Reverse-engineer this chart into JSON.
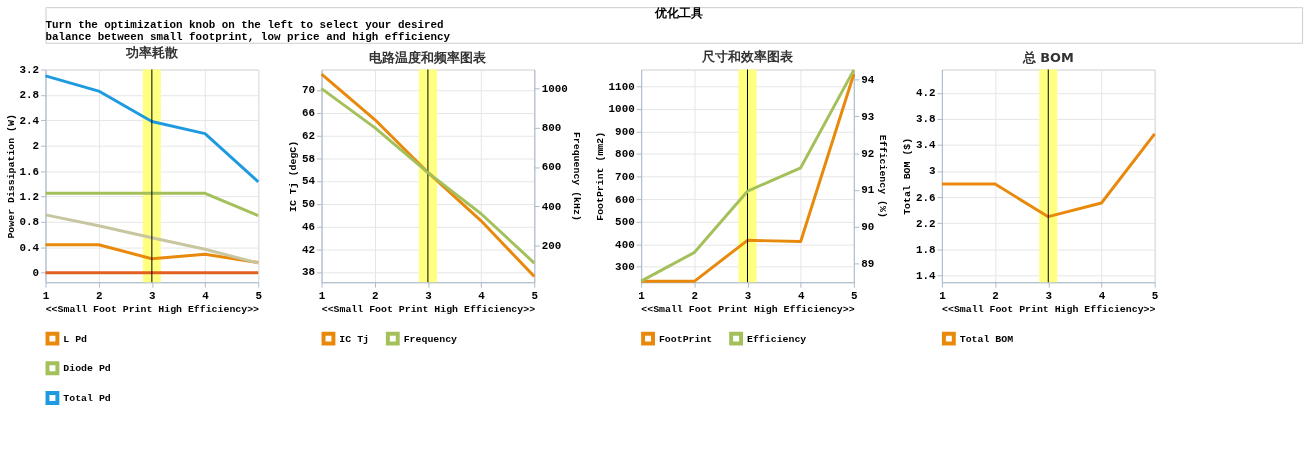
{
  "chart_data": [
    {
      "type": "line",
      "title": "功率耗散",
      "xlabel": "<<Small Foot Print      High Efficiency>>",
      "ylabel": "Power Dissipation (W)",
      "annotations": [
        "优化工具",
        "Turn the optimization knob on the left to select your desired",
        "balance between small footprint, low price and high efficiency"
      ],
      "x": [
        1,
        2,
        3,
        4,
        5
      ],
      "xlim": [
        1,
        5
      ],
      "xticks": [
        1,
        2,
        3,
        4,
        5
      ],
      "ylim": [
        -0.15,
        3.2
      ],
      "yticks": [
        0,
        0.4,
        0.8,
        1.2,
        1.6,
        2,
        2.4,
        2.8,
        3.2
      ],
      "series": [
        {
          "name": "L Pd",
          "color": "#e8890c",
          "values": [
            0.44,
            0.44,
            0.22,
            0.29,
            0.16
          ]
        },
        {
          "name": "Diode Pd",
          "color": "#a4c05a",
          "values": [
            1.25,
            1.25,
            1.25,
            1.25,
            0.9
          ]
        },
        {
          "name": "Total Pd",
          "color": "#1e9be0",
          "values": [
            3.1,
            2.86,
            2.38,
            2.19,
            1.43
          ]
        },
        {
          "color": "#c8c6a0",
          "values": [
            0.91,
            0.74,
            0.55,
            0.37,
            0.15
          ]
        },
        {
          "color": "#e06020",
          "values": [
            0,
            0,
            0,
            0,
            0
          ]
        }
      ],
      "bands": [
        {
          "axis": "x",
          "from": 2.83,
          "to": 3.17,
          "color": "#ffff80"
        }
      ],
      "ref_lines": [
        {
          "axis": "x",
          "value": 3,
          "color": "#000000"
        }
      ],
      "grid": true,
      "legend": "bottom"
    },
    {
      "type": "line",
      "title": "电路温度和频率图表",
      "xlabel": "<<Small Foot Print      High Efficiency>>",
      "ylabel": "IC Tj (degC)",
      "y2label": "Frequency (kHz)",
      "x": [
        1,
        2,
        3,
        4,
        5
      ],
      "xlim": [
        1,
        5
      ],
      "xticks": [
        1,
        2,
        3,
        4,
        5
      ],
      "ylim": [
        36.2,
        73.6
      ],
      "yticks": [
        38,
        42,
        46,
        50,
        54,
        58,
        62,
        66,
        70
      ],
      "y2lim": [
        11,
        1098
      ],
      "y2ticks": [
        200,
        400,
        600,
        800,
        1000
      ],
      "series": [
        {
          "name": "IC Tj",
          "color": "#e8890c",
          "values": [
            72.8,
            64.8,
            55.5,
            47.0,
            37.2
          ]
        },
        {
          "name": "Frequency",
          "color": "#a4c05a",
          "axis": "y2",
          "values": [
            1000,
            801,
            571,
            361,
            109
          ]
        }
      ],
      "bands": [
        {
          "axis": "x",
          "from": 2.83,
          "to": 3.17,
          "color": "#ffff80"
        }
      ],
      "ref_lines": [
        {
          "axis": "x",
          "value": 3,
          "color": "#000000"
        }
      ],
      "grid": true,
      "legend": "bottom"
    },
    {
      "type": "line",
      "title": "尺寸和效率图表",
      "xlabel": "<<Small Foot Print      High Efficiency>>",
      "ylabel": "FootPrint (mm2)",
      "y2label": "Efficiency (%)",
      "x": [
        1,
        2,
        3,
        4,
        5
      ],
      "xlim": [
        1,
        5
      ],
      "xticks": [
        1,
        2,
        3,
        4,
        5
      ],
      "ylim": [
        231,
        1175
      ],
      "yticks": [
        300,
        400,
        500,
        600,
        700,
        800,
        900,
        1000,
        1100
      ],
      "y2lim": [
        88.48,
        94.28
      ],
      "y2ticks": [
        89,
        90,
        91,
        92,
        93,
        94
      ],
      "series": [
        {
          "name": "FootPrint",
          "color": "#e8890c",
          "values": [
            235,
            235,
            417,
            412,
            1155
          ]
        },
        {
          "name": "Efficiency",
          "color": "#a4c05a",
          "axis": "y2",
          "values": [
            88.51,
            89.29,
            90.96,
            91.6,
            94.27
          ]
        }
      ],
      "bands": [
        {
          "axis": "x",
          "from": 2.83,
          "to": 3.17,
          "color": "#ffff80"
        }
      ],
      "ref_lines": [
        {
          "axis": "x",
          "value": 3,
          "color": "#000000"
        }
      ],
      "grid": true,
      "legend": "bottom"
    },
    {
      "type": "line",
      "title": "总 BOM",
      "xlabel": "<<Small Foot Print      High Efficiency>>",
      "ylabel": "Total BOM ($)",
      "x": [
        1,
        2,
        3,
        4,
        5
      ],
      "xlim": [
        1,
        5
      ],
      "xticks": [
        1,
        2,
        3,
        4,
        5
      ],
      "ylim": [
        1.295,
        4.557
      ],
      "yticks": [
        1.4,
        1.8,
        2.2,
        2.6,
        3,
        3.4,
        3.8,
        4.2
      ],
      "series": [
        {
          "name": "Total BOM",
          "color": "#e8890c",
          "values": [
            2.8,
            2.8,
            2.3,
            2.51,
            3.57
          ]
        }
      ],
      "bands": [
        {
          "axis": "x",
          "from": 2.83,
          "to": 3.17,
          "color": "#ffff80"
        }
      ],
      "ref_lines": [
        {
          "axis": "x",
          "value": 3,
          "color": "#000000"
        }
      ],
      "grid": true,
      "legend": "bottom"
    }
  ]
}
